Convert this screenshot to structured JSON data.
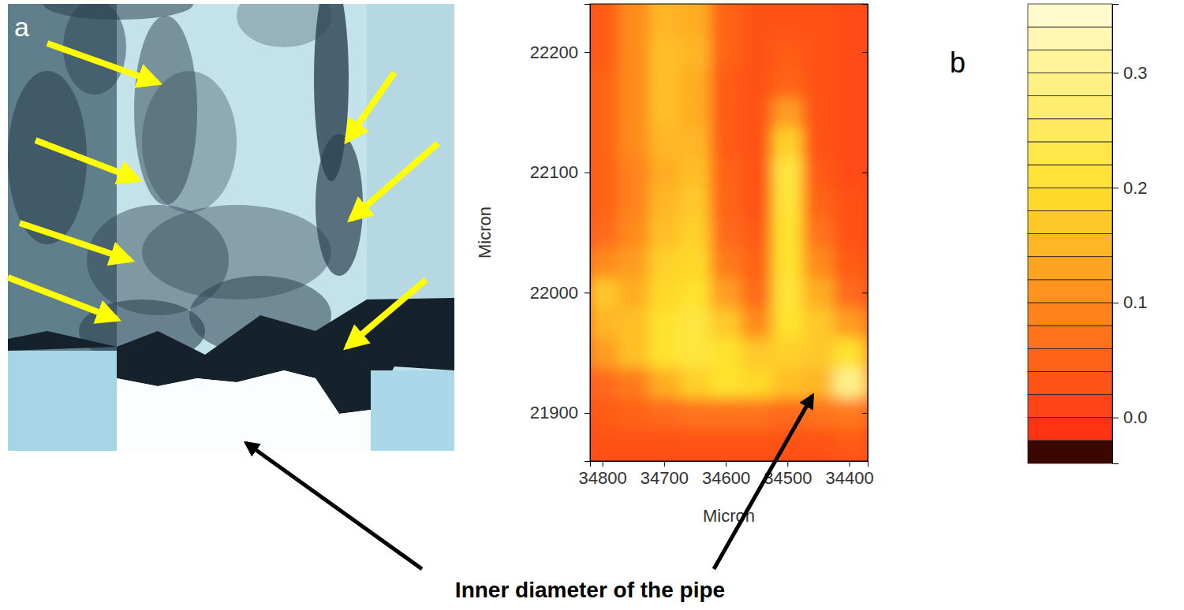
{
  "photo": {
    "label": "a"
  },
  "annotation": "Inner diameter of the pipe",
  "chart_data": {
    "type": "heatmap",
    "label": "b",
    "x_label": "Micron",
    "y_label": "Micron",
    "xlim": [
      34820,
      34370
    ],
    "xticks": [
      34800,
      34700,
      34600,
      34500,
      34400
    ],
    "ylim": [
      21860,
      22240
    ],
    "yticks": [
      21900,
      22000,
      22100,
      22200
    ],
    "x": [
      34800,
      34750,
      34700,
      34650,
      34600,
      34550,
      34500,
      34450,
      34400,
      34350
    ],
    "y": [
      21850,
      21875,
      21900,
      21925,
      21950,
      21975,
      22000,
      22025,
      22050,
      22075,
      22100,
      22125,
      22150,
      22175,
      22200,
      22225,
      22250
    ],
    "z": [
      [
        0.02,
        0.02,
        0.02,
        0.02,
        0.02,
        0.02,
        0.02,
        0.02,
        0.02,
        0.02
      ],
      [
        0.03,
        0.03,
        0.03,
        0.03,
        0.03,
        0.03,
        0.03,
        0.03,
        0.04,
        0.03
      ],
      [
        0.04,
        0.05,
        0.06,
        0.07,
        0.07,
        0.07,
        0.06,
        0.07,
        0.08,
        0.05
      ],
      [
        0.06,
        0.08,
        0.14,
        0.18,
        0.2,
        0.19,
        0.16,
        0.15,
        0.3,
        0.12
      ],
      [
        0.12,
        0.16,
        0.2,
        0.22,
        0.2,
        0.17,
        0.18,
        0.17,
        0.2,
        0.1
      ],
      [
        0.15,
        0.16,
        0.2,
        0.22,
        0.17,
        0.1,
        0.2,
        0.17,
        0.12,
        0.06
      ],
      [
        0.17,
        0.14,
        0.19,
        0.2,
        0.12,
        0.06,
        0.21,
        0.14,
        0.06,
        0.03
      ],
      [
        0.1,
        0.12,
        0.18,
        0.19,
        0.08,
        0.05,
        0.2,
        0.1,
        0.04,
        0.03
      ],
      [
        0.06,
        0.1,
        0.16,
        0.18,
        0.06,
        0.04,
        0.2,
        0.07,
        0.03,
        0.02
      ],
      [
        0.05,
        0.09,
        0.15,
        0.17,
        0.05,
        0.03,
        0.21,
        0.05,
        0.03,
        0.02
      ],
      [
        0.05,
        0.09,
        0.14,
        0.16,
        0.05,
        0.03,
        0.22,
        0.04,
        0.02,
        0.02
      ],
      [
        0.05,
        0.1,
        0.15,
        0.15,
        0.04,
        0.03,
        0.18,
        0.03,
        0.02,
        0.02
      ],
      [
        0.05,
        0.1,
        0.16,
        0.14,
        0.04,
        0.03,
        0.12,
        0.03,
        0.02,
        0.02
      ],
      [
        0.05,
        0.1,
        0.16,
        0.14,
        0.04,
        0.03,
        0.05,
        0.03,
        0.02,
        0.02
      ],
      [
        0.04,
        0.1,
        0.16,
        0.15,
        0.05,
        0.03,
        0.04,
        0.03,
        0.02,
        0.02
      ],
      [
        0.04,
        0.1,
        0.15,
        0.14,
        0.05,
        0.03,
        0.03,
        0.03,
        0.02,
        0.02
      ],
      [
        0.04,
        0.1,
        0.15,
        0.14,
        0.05,
        0.03,
        0.03,
        0.03,
        0.02,
        0.02
      ]
    ],
    "colorbar": {
      "range": [
        -0.04,
        0.36
      ],
      "ticks": [
        {
          "value": 0,
          "label": "0.0"
        },
        0.1,
        0.2,
        0.3
      ],
      "levels": [
        -0.04,
        -0.02,
        0,
        0.02,
        0.04,
        0.06,
        0.08,
        0.1,
        0.12,
        0.14,
        0.16,
        0.18,
        0.2,
        0.22,
        0.24,
        0.26,
        0.28,
        0.3,
        0.32,
        0.34,
        0.36
      ]
    }
  }
}
